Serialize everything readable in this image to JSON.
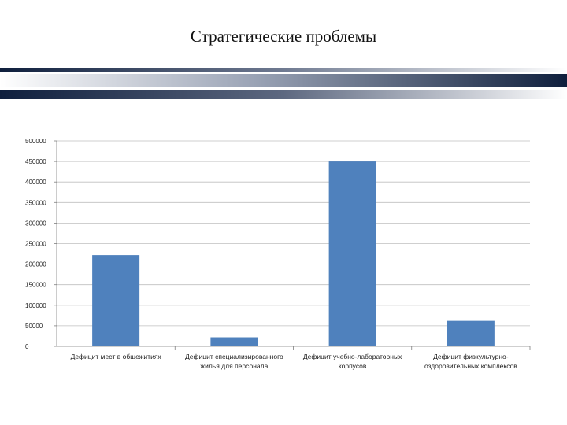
{
  "slide": {
    "title": "Стратегические проблемы"
  },
  "colors": {
    "bar": "#4f81bd",
    "band_dark": "#0f1f3d",
    "band_light": "#ffffff",
    "grid": "#bfbfbf",
    "axis": "#7f7f7f"
  },
  "chart_data": {
    "type": "bar",
    "title": "",
    "xlabel": "",
    "ylabel": "",
    "categories": [
      [
        "Дефицит мест в общежитиях"
      ],
      [
        "Дефицит специализированного",
        "жилья для персонала"
      ],
      [
        "Дефицит учебно-лабораторных",
        "корпусов"
      ],
      [
        "Дефицит физкультурно-",
        "оздоровительных комплексов"
      ]
    ],
    "values": [
      222000,
      22000,
      450000,
      62000
    ],
    "ylim": [
      0,
      500000
    ],
    "yticks": [
      0,
      50000,
      100000,
      150000,
      200000,
      250000,
      300000,
      350000,
      400000,
      450000,
      500000
    ],
    "grid": true,
    "legend": "none"
  }
}
